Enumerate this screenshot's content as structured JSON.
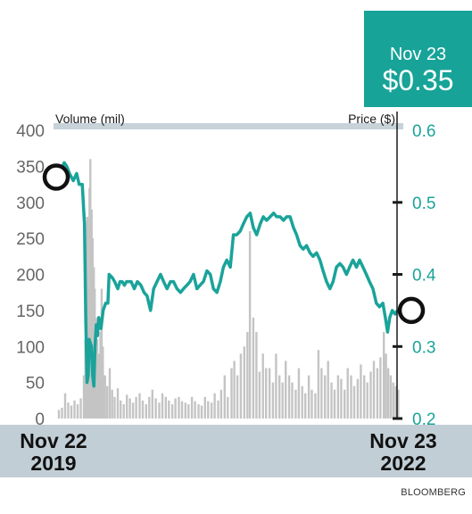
{
  "colors": {
    "price_line": "#1aa39a",
    "volume_bars": "#c4c4c4",
    "axis_band": "#c2ced6",
    "price_box": "#17a398",
    "left_tick_text": "#666666",
    "right_tick_text": "#1aa39a",
    "header_band": "#c7d2d9"
  },
  "price_box": {
    "date": "Nov 23",
    "price": "$0.35"
  },
  "source": "BLOOMBERG",
  "chart_data": {
    "type": "line",
    "title": "",
    "left_axis": {
      "label": "Volume (mil)",
      "ticks": [
        "0",
        "50",
        "100",
        "150",
        "200",
        "250",
        "300",
        "350",
        "400"
      ],
      "range": [
        0,
        400
      ]
    },
    "right_axis": {
      "label": "Price ($)",
      "ticks": [
        "0.2",
        "0.3",
        "0.4",
        "0.5",
        "0.6"
      ],
      "range": [
        0.2,
        0.6
      ]
    },
    "x_labels": [
      {
        "line1": "Nov 22",
        "line2": "2019"
      },
      {
        "line1": "Nov 23",
        "line2": "2022"
      }
    ],
    "x_range": [
      "2019-11-22",
      "2022-11-23"
    ],
    "highlights": [
      {
        "name": "start",
        "date": "2019-11-22",
        "price": 0.535
      },
      {
        "name": "end",
        "date": "2022-11-23",
        "price": 0.35
      }
    ],
    "series": [
      {
        "name": "Price",
        "axis": "right",
        "points": [
          [
            "2019-11-22",
            0.535
          ],
          [
            "2019-12-02",
            0.545
          ],
          [
            "2019-12-12",
            0.555
          ],
          [
            "2019-12-20",
            0.55
          ],
          [
            "2019-12-29",
            0.54
          ],
          [
            "2020-01-10",
            0.53
          ],
          [
            "2020-01-21",
            0.54
          ],
          [
            "2020-01-29",
            0.525
          ],
          [
            "2020-02-08",
            0.525
          ],
          [
            "2020-02-15",
            0.47
          ],
          [
            "2020-02-19",
            0.34
          ],
          [
            "2020-02-23",
            0.25
          ],
          [
            "2020-02-27",
            0.26
          ],
          [
            "2020-03-01",
            0.31
          ],
          [
            "2020-03-08",
            0.3
          ],
          [
            "2020-03-12",
            0.26
          ],
          [
            "2020-03-16",
            0.245
          ],
          [
            "2020-03-20",
            0.3
          ],
          [
            "2020-03-24",
            0.33
          ],
          [
            "2020-03-28",
            0.315
          ],
          [
            "2020-04-01",
            0.34
          ],
          [
            "2020-04-08",
            0.325
          ],
          [
            "2020-04-15",
            0.35
          ],
          [
            "2020-04-23",
            0.36
          ],
          [
            "2020-04-30",
            0.36
          ],
          [
            "2020-05-04",
            0.4
          ],
          [
            "2020-05-15",
            0.395
          ],
          [
            "2020-05-22",
            0.39
          ],
          [
            "2020-06-01",
            0.38
          ],
          [
            "2020-06-08",
            0.39
          ],
          [
            "2020-06-15",
            0.39
          ],
          [
            "2020-06-22",
            0.385
          ],
          [
            "2020-06-29",
            0.39
          ],
          [
            "2020-07-14",
            0.39
          ],
          [
            "2020-07-24",
            0.38
          ],
          [
            "2020-08-03",
            0.39
          ],
          [
            "2020-08-14",
            0.385
          ],
          [
            "2020-08-24",
            0.375
          ],
          [
            "2020-09-03",
            0.37
          ],
          [
            "2020-09-14",
            0.35
          ],
          [
            "2020-09-24",
            0.38
          ],
          [
            "2020-10-05",
            0.39
          ],
          [
            "2020-10-16",
            0.4
          ],
          [
            "2020-10-26",
            0.39
          ],
          [
            "2020-11-06",
            0.38
          ],
          [
            "2020-11-17",
            0.39
          ],
          [
            "2020-11-27",
            0.39
          ],
          [
            "2020-12-08",
            0.38
          ],
          [
            "2020-12-19",
            0.375
          ],
          [
            "2020-12-29",
            0.38
          ],
          [
            "2021-01-09",
            0.385
          ],
          [
            "2021-01-19",
            0.39
          ],
          [
            "2021-01-30",
            0.4
          ],
          [
            "2021-02-10",
            0.38
          ],
          [
            "2021-02-20",
            0.385
          ],
          [
            "2021-03-03",
            0.39
          ],
          [
            "2021-03-14",
            0.405
          ],
          [
            "2021-03-25",
            0.4
          ],
          [
            "2021-04-04",
            0.38
          ],
          [
            "2021-04-15",
            0.375
          ],
          [
            "2021-04-26",
            0.39
          ],
          [
            "2021-05-06",
            0.41
          ],
          [
            "2021-05-17",
            0.42
          ],
          [
            "2021-05-28",
            0.41
          ],
          [
            "2021-06-07",
            0.455
          ],
          [
            "2021-06-18",
            0.455
          ],
          [
            "2021-06-29",
            0.46
          ],
          [
            "2021-07-09",
            0.47
          ],
          [
            "2021-07-20",
            0.48
          ],
          [
            "2021-07-31",
            0.485
          ],
          [
            "2021-08-10",
            0.465
          ],
          [
            "2021-08-21",
            0.455
          ],
          [
            "2021-09-01",
            0.47
          ],
          [
            "2021-09-11",
            0.48
          ],
          [
            "2021-09-22",
            0.475
          ],
          [
            "2021-10-03",
            0.48
          ],
          [
            "2021-10-14",
            0.485
          ],
          [
            "2021-10-24",
            0.48
          ],
          [
            "2021-11-04",
            0.48
          ],
          [
            "2021-11-15",
            0.475
          ],
          [
            "2021-11-25",
            0.48
          ],
          [
            "2021-12-06",
            0.48
          ],
          [
            "2021-12-17",
            0.465
          ],
          [
            "2021-12-27",
            0.455
          ],
          [
            "2022-01-07",
            0.44
          ],
          [
            "2022-01-17",
            0.435
          ],
          [
            "2022-01-28",
            0.44
          ],
          [
            "2022-02-08",
            0.43
          ],
          [
            "2022-02-18",
            0.425
          ],
          [
            "2022-03-01",
            0.43
          ],
          [
            "2022-03-12",
            0.42
          ],
          [
            "2022-03-22",
            0.405
          ],
          [
            "2022-04-02",
            0.39
          ],
          [
            "2022-04-13",
            0.38
          ],
          [
            "2022-04-23",
            0.39
          ],
          [
            "2022-05-04",
            0.41
          ],
          [
            "2022-05-15",
            0.415
          ],
          [
            "2022-05-25",
            0.41
          ],
          [
            "2022-06-05",
            0.4
          ],
          [
            "2022-06-15",
            0.41
          ],
          [
            "2022-06-26",
            0.42
          ],
          [
            "2022-07-07",
            0.41
          ],
          [
            "2022-07-17",
            0.42
          ],
          [
            "2022-07-28",
            0.41
          ],
          [
            "2022-08-08",
            0.4
          ],
          [
            "2022-08-18",
            0.39
          ],
          [
            "2022-08-29",
            0.38
          ],
          [
            "2022-09-09",
            0.36
          ],
          [
            "2022-09-19",
            0.355
          ],
          [
            "2022-09-30",
            0.36
          ],
          [
            "2022-10-08",
            0.34
          ],
          [
            "2022-10-15",
            0.32
          ],
          [
            "2022-10-22",
            0.34
          ],
          [
            "2022-10-30",
            0.35
          ],
          [
            "2022-11-08",
            0.345
          ],
          [
            "2022-11-16",
            0.35
          ],
          [
            "2022-11-23",
            0.35
          ]
        ]
      },
      {
        "name": "Volume",
        "axis": "left",
        "type": "bar",
        "points": [
          [
            "2019-11-25",
            12
          ],
          [
            "2019-12-05",
            15
          ],
          [
            "2019-12-15",
            35
          ],
          [
            "2019-12-25",
            22
          ],
          [
            "2020-01-04",
            18
          ],
          [
            "2020-01-14",
            25
          ],
          [
            "2020-01-24",
            20
          ],
          [
            "2020-02-03",
            28
          ],
          [
            "2020-02-13",
            60
          ],
          [
            "2020-02-18",
            110
          ],
          [
            "2020-02-21",
            140
          ],
          [
            "2020-02-24",
            280
          ],
          [
            "2020-02-27",
            180
          ],
          [
            "2020-03-02",
            320
          ],
          [
            "2020-03-05",
            360
          ],
          [
            "2020-03-09",
            290
          ],
          [
            "2020-03-12",
            250
          ],
          [
            "2020-03-16",
            210
          ],
          [
            "2020-03-19",
            180
          ],
          [
            "2020-03-23",
            140
          ],
          [
            "2020-03-27",
            110
          ],
          [
            "2020-03-31",
            90
          ],
          [
            "2020-04-06",
            120
          ],
          [
            "2020-04-10",
            180
          ],
          [
            "2020-04-14",
            100
          ],
          [
            "2020-04-21",
            60
          ],
          [
            "2020-04-28",
            45
          ],
          [
            "2020-05-06",
            70
          ],
          [
            "2020-05-14",
            40
          ],
          [
            "2020-05-22",
            30
          ],
          [
            "2020-06-01",
            42
          ],
          [
            "2020-06-10",
            25
          ],
          [
            "2020-06-20",
            20
          ],
          [
            "2020-06-30",
            33
          ],
          [
            "2020-07-10",
            28
          ],
          [
            "2020-07-20",
            22
          ],
          [
            "2020-07-30",
            30
          ],
          [
            "2020-08-10",
            35
          ],
          [
            "2020-08-20",
            25
          ],
          [
            "2020-08-31",
            20
          ],
          [
            "2020-09-10",
            30
          ],
          [
            "2020-09-20",
            40
          ],
          [
            "2020-10-01",
            28
          ],
          [
            "2020-10-12",
            22
          ],
          [
            "2020-10-22",
            35
          ],
          [
            "2020-11-02",
            30
          ],
          [
            "2020-11-12",
            25
          ],
          [
            "2020-11-23",
            20
          ],
          [
            "2020-12-03",
            28
          ],
          [
            "2020-12-14",
            30
          ],
          [
            "2020-12-24",
            24
          ],
          [
            "2021-01-04",
            22
          ],
          [
            "2021-01-14",
            20
          ],
          [
            "2021-01-25",
            30
          ],
          [
            "2021-02-04",
            24
          ],
          [
            "2021-02-15",
            20
          ],
          [
            "2021-02-25",
            18
          ],
          [
            "2021-03-08",
            30
          ],
          [
            "2021-03-18",
            24
          ],
          [
            "2021-03-29",
            22
          ],
          [
            "2021-04-08",
            35
          ],
          [
            "2021-04-19",
            25
          ],
          [
            "2021-04-29",
            40
          ],
          [
            "2021-05-10",
            60
          ],
          [
            "2021-05-20",
            30
          ],
          [
            "2021-06-01",
            70
          ],
          [
            "2021-06-10",
            80
          ],
          [
            "2021-06-20",
            60
          ],
          [
            "2021-07-01",
            90
          ],
          [
            "2021-07-12",
            100
          ],
          [
            "2021-07-22",
            120
          ],
          [
            "2021-07-30",
            260
          ],
          [
            "2021-08-10",
            140
          ],
          [
            "2021-08-20",
            120
          ],
          [
            "2021-08-30",
            65
          ],
          [
            "2021-09-10",
            90
          ],
          [
            "2021-09-20",
            70
          ],
          [
            "2021-10-01",
            70
          ],
          [
            "2021-10-12",
            50
          ],
          [
            "2021-10-22",
            90
          ],
          [
            "2021-11-02",
            60
          ],
          [
            "2021-11-12",
            50
          ],
          [
            "2021-11-22",
            80
          ],
          [
            "2021-12-03",
            60
          ],
          [
            "2021-12-13",
            50
          ],
          [
            "2021-12-24",
            40
          ],
          [
            "2022-01-03",
            70
          ],
          [
            "2022-01-14",
            45
          ],
          [
            "2022-01-24",
            35
          ],
          [
            "2022-02-04",
            60
          ],
          [
            "2022-02-14",
            40
          ],
          [
            "2022-02-25",
            35
          ],
          [
            "2022-03-07",
            95
          ],
          [
            "2022-03-17",
            70
          ],
          [
            "2022-03-28",
            60
          ],
          [
            "2022-04-07",
            80
          ],
          [
            "2022-04-18",
            50
          ],
          [
            "2022-04-28",
            40
          ],
          [
            "2022-05-09",
            60
          ],
          [
            "2022-05-19",
            55
          ],
          [
            "2022-05-30",
            40
          ],
          [
            "2022-06-09",
            70
          ],
          [
            "2022-06-20",
            60
          ],
          [
            "2022-06-30",
            45
          ],
          [
            "2022-07-11",
            55
          ],
          [
            "2022-07-21",
            75
          ],
          [
            "2022-08-01",
            60
          ],
          [
            "2022-08-11",
            50
          ],
          [
            "2022-08-22",
            65
          ],
          [
            "2022-09-01",
            80
          ],
          [
            "2022-09-12",
            70
          ],
          [
            "2022-09-22",
            85
          ],
          [
            "2022-10-03",
            120
          ],
          [
            "2022-10-10",
            90
          ],
          [
            "2022-10-17",
            70
          ],
          [
            "2022-10-25",
            60
          ],
          [
            "2022-11-02",
            50
          ],
          [
            "2022-11-10",
            45
          ],
          [
            "2022-11-18",
            40
          ]
        ]
      }
    ]
  }
}
